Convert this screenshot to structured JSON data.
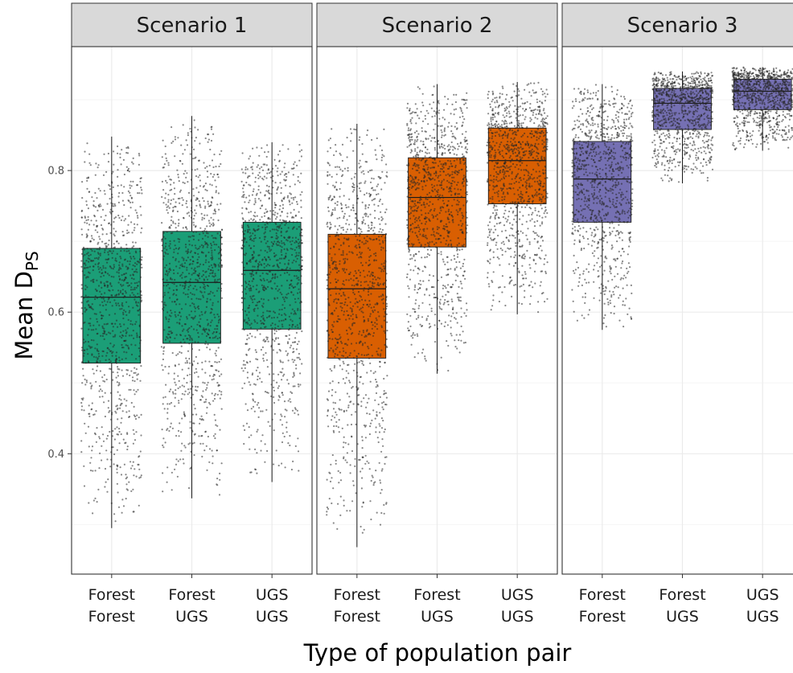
{
  "chart_data": {
    "type": "boxplot",
    "title": "",
    "xlabel": "Type of population pair",
    "ylabel": "Mean D",
    "ylabel_subscript": "PS",
    "ylim": [
      0.23,
      0.975
    ],
    "yticks": [
      0.4,
      0.6,
      0.8
    ],
    "ytick_labels": [
      "0.4",
      "0.6",
      "0.8"
    ],
    "grid": true,
    "jitter_points": true,
    "categories": [
      {
        "line1": "Forest",
        "line2": "Forest"
      },
      {
        "line1": "Forest",
        "line2": "UGS"
      },
      {
        "line1": "UGS",
        "line2": "UGS"
      }
    ],
    "panels": [
      {
        "name": "Scenario 1",
        "color": "#1b9e77",
        "boxes": [
          {
            "min": 0.295,
            "q1": 0.528,
            "median": 0.621,
            "q3": 0.69,
            "max": 0.848
          },
          {
            "min": 0.337,
            "q1": 0.556,
            "median": 0.642,
            "q3": 0.714,
            "max": 0.877
          },
          {
            "min": 0.36,
            "q1": 0.576,
            "median": 0.659,
            "q3": 0.727,
            "max": 0.84
          }
        ]
      },
      {
        "name": "Scenario 2",
        "color": "#d95f02",
        "boxes": [
          {
            "min": 0.268,
            "q1": 0.535,
            "median": 0.633,
            "q3": 0.71,
            "max": 0.866
          },
          {
            "min": 0.513,
            "q1": 0.692,
            "median": 0.762,
            "q3": 0.818,
            "max": 0.922
          },
          {
            "min": 0.597,
            "q1": 0.753,
            "median": 0.814,
            "q3": 0.86,
            "max": 0.925
          }
        ]
      },
      {
        "name": "Scenario 3",
        "color": "#7570b3",
        "boxes": [
          {
            "min": 0.575,
            "q1": 0.727,
            "median": 0.788,
            "q3": 0.841,
            "max": 0.922
          },
          {
            "min": 0.782,
            "q1": 0.858,
            "median": 0.895,
            "q3": 0.916,
            "max": 0.94
          },
          {
            "min": 0.828,
            "q1": 0.886,
            "median": 0.912,
            "q3": 0.929,
            "max": 0.946
          }
        ]
      }
    ],
    "colors": {
      "strip_bg": "#d9d9d9",
      "grid_major": "#ebebeb",
      "grid_minor": "#f5f5f5",
      "panel_border": "#333333",
      "points": "#262626"
    }
  }
}
